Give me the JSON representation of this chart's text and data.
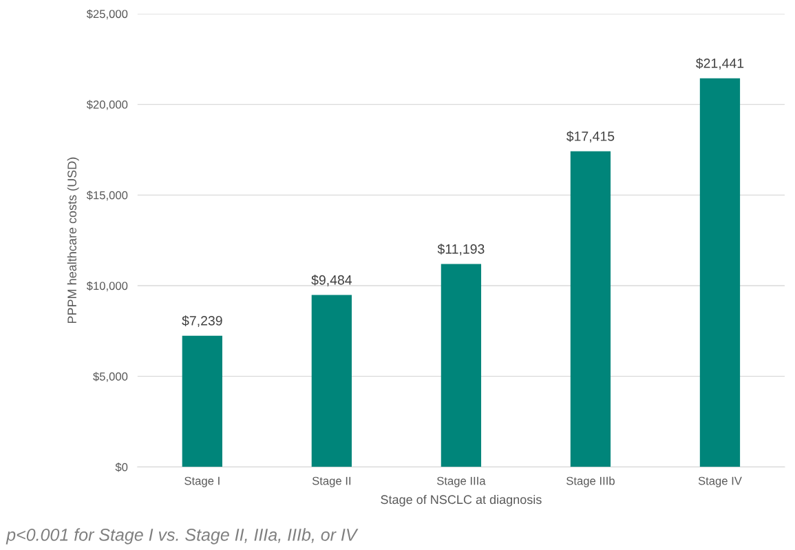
{
  "chart_data": {
    "type": "bar",
    "xlabel": "Stage of NSCLC at diagnosis",
    "ylabel": "PPPM healthcare costs (USD)",
    "categories": [
      "Stage I",
      "Stage II",
      "Stage IIIa",
      "Stage IIIb",
      "Stage IV"
    ],
    "values": [
      7239,
      9484,
      11193,
      17415,
      21441
    ],
    "value_labels": [
      "$7,239",
      "$9,484",
      "$11,193",
      "$17,415",
      "$21,441"
    ],
    "color": "#00857a",
    "ylim": [
      0,
      25000
    ],
    "yticks": [
      {
        "value": 0,
        "label": "$0"
      },
      {
        "value": 5000,
        "label": "$5,000"
      },
      {
        "value": 10000,
        "label": "$10,000"
      },
      {
        "value": 15000,
        "label": "$15,000"
      },
      {
        "value": 20000,
        "label": "$20,000"
      },
      {
        "value": 25000,
        "label": "$25,000"
      }
    ],
    "grid": "y",
    "annotations": [
      "p<0.001 for Stage I vs. Stage II, IIIa, IIIb, or IV"
    ]
  }
}
